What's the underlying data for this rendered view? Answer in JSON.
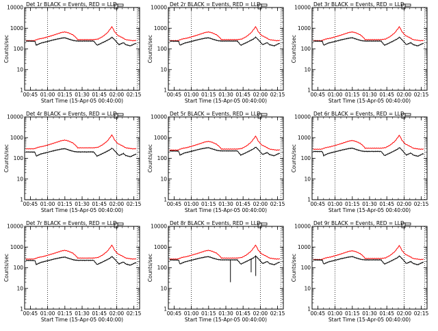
{
  "chart_data": {
    "type": "line",
    "grid": false,
    "legend": "none",
    "ylabel": "Counts/sec",
    "xlabel": "Start Time (15-Apr-05 00:40:00)",
    "x_tick_labels": [
      "00:45",
      "01:00",
      "01:15",
      "01:30",
      "01:45",
      "02:00",
      "02:15"
    ],
    "x_tick_minutes": [
      5,
      20,
      35,
      50,
      65,
      80,
      95
    ],
    "xlim_minutes": [
      0,
      100
    ],
    "y_tick_labels": [
      "1",
      "10",
      "100",
      "1000",
      "10000"
    ],
    "ylim": [
      1,
      10000
    ],
    "y_scale": "log",
    "vlines_minutes": [
      20,
      80,
      98
    ],
    "colors": {
      "events": "#000000",
      "lld": "#ff0000"
    },
    "panels": [
      {
        "title": "Det 1r BLACK = Events, RED = LLD",
        "lld_scale": 1.0,
        "ev_scale": 1.0,
        "dips": []
      },
      {
        "title": "Det 2r BLACK = Events, RED = LLD",
        "lld_scale": 1.0,
        "ev_scale": 1.0,
        "dips": []
      },
      {
        "title": "Det 3r BLACK = Events, RED = LLD",
        "lld_scale": 1.0,
        "ev_scale": 1.0,
        "dips": []
      },
      {
        "title": "Det 4r BLACK = Events, RED = LLD",
        "lld_scale": 1.15,
        "ev_scale": 0.85,
        "dips": []
      },
      {
        "title": "Det 5r BLACK = Events, RED = LLD",
        "lld_scale": 1.0,
        "ev_scale": 0.95,
        "dips": []
      },
      {
        "title": "Det 6r BLACK = Events, RED = LLD",
        "lld_scale": 1.1,
        "ev_scale": 0.9,
        "dips": []
      },
      {
        "title": "Det 7r BLACK = Events, RED = LLD",
        "lld_scale": 1.05,
        "ev_scale": 0.95,
        "dips": []
      },
      {
        "title": "Det 8r BLACK = Events, RED = LLD",
        "lld_scale": 1.05,
        "ev_scale": 1.0,
        "dips": [
          [
            54,
            20
          ],
          [
            72,
            60
          ],
          [
            76,
            40
          ]
        ]
      },
      {
        "title": "Det 9r BLACK = Events, RED = LLD",
        "lld_scale": 1.0,
        "ev_scale": 1.0,
        "dips": []
      }
    ],
    "lld_profile": [
      [
        0,
        250
      ],
      [
        8,
        250
      ],
      [
        12,
        300
      ],
      [
        16,
        330
      ],
      [
        20,
        380
      ],
      [
        26,
        480
      ],
      [
        32,
        620
      ],
      [
        35,
        660
      ],
      [
        38,
        600
      ],
      [
        42,
        480
      ],
      [
        45,
        340
      ],
      [
        46,
        280
      ],
      [
        60,
        280
      ],
      [
        64,
        300
      ],
      [
        68,
        400
      ],
      [
        72,
        600
      ],
      [
        74,
        850
      ],
      [
        76,
        1200
      ],
      [
        78,
        700
      ],
      [
        81,
        450
      ],
      [
        85,
        350
      ],
      [
        88,
        280
      ],
      [
        94,
        250
      ],
      [
        100,
        260
      ]
    ],
    "events_profile": [
      [
        0,
        240
      ],
      [
        9,
        235
      ],
      [
        10,
        150
      ],
      [
        14,
        190
      ],
      [
        20,
        230
      ],
      [
        26,
        280
      ],
      [
        32,
        330
      ],
      [
        35,
        345
      ],
      [
        39,
        290
      ],
      [
        43,
        250
      ],
      [
        46,
        240
      ],
      [
        60,
        240
      ],
      [
        63,
        150
      ],
      [
        66,
        180
      ],
      [
        70,
        230
      ],
      [
        74,
        300
      ],
      [
        76,
        370
      ],
      [
        79,
        250
      ],
      [
        82,
        160
      ],
      [
        84,
        180
      ],
      [
        86,
        200
      ],
      [
        88,
        160
      ],
      [
        92,
        140
      ],
      [
        96,
        180
      ],
      [
        100,
        200
      ]
    ]
  }
}
